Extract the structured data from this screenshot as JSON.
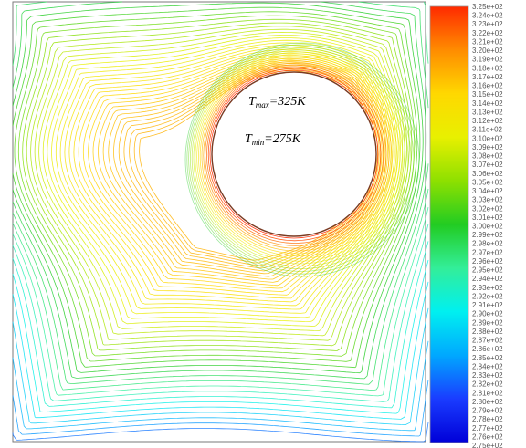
{
  "chart_data": {
    "type": "contour",
    "title": "",
    "xlabel": "",
    "ylabel": "",
    "annotations": {
      "tmax": {
        "symbol": "T",
        "subscript": "max",
        "value": "=325K"
      },
      "tmin": {
        "symbol": "T",
        "subscript": "min",
        "value": "=275K"
      }
    },
    "colorbar": {
      "min": 275,
      "max": 325,
      "colors": [
        "#ff2a00",
        "#ff8c00",
        "#ffd800",
        "#e8f000",
        "#8ee000",
        "#22cc22",
        "#33ee99",
        "#00f0f0",
        "#00a8ff",
        "#1a3cff",
        "#0000d8"
      ],
      "tick_labels": [
        "3.25e+02",
        "3.24e+02",
        "3.23e+02",
        "3.22e+02",
        "3.21e+02",
        "3.20e+02",
        "3.19e+02",
        "3.18e+02",
        "3.17e+02",
        "3.16e+02",
        "3.15e+02",
        "3.14e+02",
        "3.13e+02",
        "3.12e+02",
        "3.11e+02",
        "3.10e+02",
        "3.09e+02",
        "3.08e+02",
        "3.07e+02",
        "3.06e+02",
        "3.05e+02",
        "3.04e+02",
        "3.03e+02",
        "3.02e+02",
        "3.01e+02",
        "3.00e+02",
        "2.99e+02",
        "2.98e+02",
        "2.97e+02",
        "2.96e+02",
        "2.95e+02",
        "2.94e+02",
        "2.93e+02",
        "2.92e+02",
        "2.91e+02",
        "2.90e+02",
        "2.89e+02",
        "2.88e+02",
        "2.87e+02",
        "2.86e+02",
        "2.85e+02",
        "2.84e+02",
        "2.83e+02",
        "2.82e+02",
        "2.81e+02",
        "2.80e+02",
        "2.79e+02",
        "2.78e+02",
        "2.77e+02",
        "2.76e+02",
        "2.75e+02"
      ]
    }
  }
}
